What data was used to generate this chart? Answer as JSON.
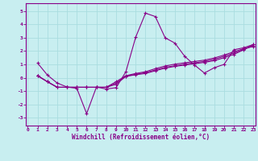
{
  "title": "",
  "xlabel": "Windchill (Refroidissement éolien,°C)",
  "background_color": "#c8eef0",
  "grid_color": "#aadde0",
  "line_color": "#880088",
  "x_ticks": [
    0,
    1,
    2,
    3,
    4,
    5,
    6,
    7,
    8,
    9,
    10,
    11,
    12,
    13,
    14,
    15,
    16,
    17,
    18,
    19,
    20,
    21,
    22,
    23
  ],
  "y_ticks": [
    -3,
    -2,
    -1,
    0,
    1,
    2,
    3,
    4,
    5
  ],
  "xlim": [
    -0.2,
    23.2
  ],
  "ylim": [
    -3.6,
    5.6
  ],
  "lines": [
    {
      "x": [
        1,
        2,
        3,
        4,
        5,
        6,
        7,
        8,
        9,
        10,
        11,
        12,
        13,
        14,
        15,
        16,
        17,
        18,
        19,
        20,
        21,
        22,
        23
      ],
      "y": [
        1.1,
        0.2,
        -0.4,
        -0.7,
        -0.8,
        -2.7,
        -0.7,
        -0.85,
        -0.75,
        0.45,
        3.05,
        4.85,
        4.6,
        3.0,
        2.6,
        1.6,
        0.95,
        0.35,
        0.75,
        1.0,
        2.1,
        2.25,
        2.5
      ]
    },
    {
      "x": [
        1,
        2,
        3,
        4,
        5,
        6,
        7,
        8,
        9,
        10,
        11,
        12,
        13,
        14,
        15,
        16,
        17,
        18,
        19,
        20,
        21,
        22,
        23
      ],
      "y": [
        0.15,
        -0.3,
        -0.72,
        -0.72,
        -0.72,
        -0.72,
        -0.72,
        -0.72,
        -0.5,
        0.1,
        0.22,
        0.32,
        0.52,
        0.72,
        0.85,
        0.95,
        1.05,
        1.15,
        1.28,
        1.5,
        1.75,
        2.1,
        2.5
      ]
    },
    {
      "x": [
        1,
        2,
        3,
        4,
        5,
        6,
        7,
        8,
        9,
        10,
        11,
        12,
        13,
        14,
        15,
        16,
        17,
        18,
        19,
        20,
        21,
        22,
        23
      ],
      "y": [
        0.15,
        -0.3,
        -0.72,
        -0.72,
        -0.72,
        -0.72,
        -0.72,
        -0.72,
        -0.4,
        0.12,
        0.25,
        0.38,
        0.58,
        0.78,
        0.9,
        1.02,
        1.12,
        1.22,
        1.38,
        1.6,
        1.85,
        2.12,
        2.42
      ]
    },
    {
      "x": [
        1,
        2,
        3,
        4,
        5,
        6,
        7,
        8,
        9,
        10,
        11,
        12,
        13,
        14,
        15,
        16,
        17,
        18,
        19,
        20,
        21,
        22,
        23
      ],
      "y": [
        0.15,
        -0.3,
        -0.72,
        -0.72,
        -0.72,
        -0.72,
        -0.72,
        -0.72,
        -0.3,
        0.15,
        0.32,
        0.45,
        0.68,
        0.88,
        1.02,
        1.12,
        1.22,
        1.32,
        1.48,
        1.7,
        1.95,
        2.18,
        2.35
      ]
    }
  ]
}
